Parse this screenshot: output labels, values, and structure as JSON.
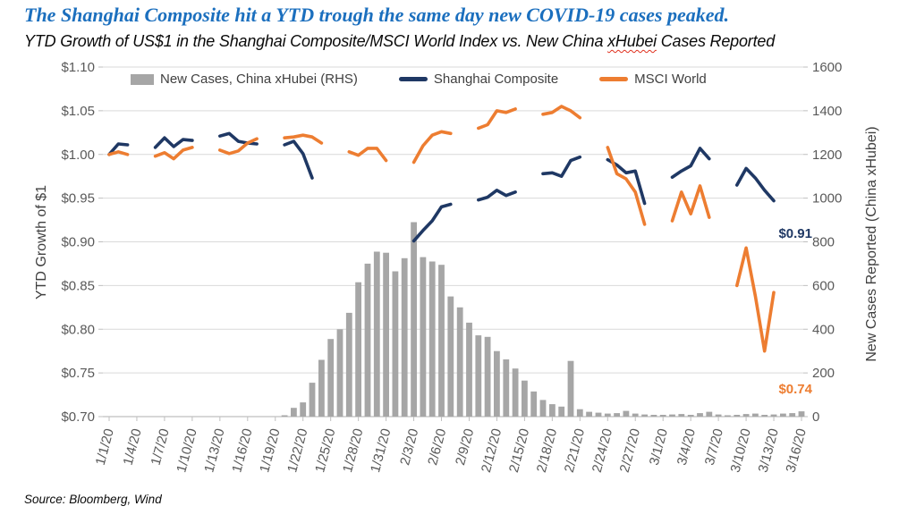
{
  "header": {
    "title": "The Shanghai Composite hit a YTD trough the same day new COVID-19 cases peaked.",
    "subtitle_pre": "YTD Growth of US$1 in the Shanghai Composite/MSCI World Index vs. New China ",
    "subtitle_highlight": "xHubei",
    "subtitle_post": " Cases Reported"
  },
  "legend": {
    "items": [
      {
        "label": "New Cases, China xHubei (RHS)",
        "type": "bar",
        "color": "#A6A6A6"
      },
      {
        "label": "Shanghai Composite",
        "type": "line",
        "color": "#1F3864"
      },
      {
        "label": "MSCI World",
        "type": "line",
        "color": "#ED7D31"
      }
    ]
  },
  "annotations": {
    "shanghai_end": {
      "text": "$0.91",
      "color": "#1F3864"
    },
    "msci_end": {
      "text": "$0.74",
      "color": "#ED7D31"
    }
  },
  "source": "Source: Bloomberg, Wind",
  "colors": {
    "title_blue": "#1B6FBE",
    "grid": "#D9D9D9",
    "axis_line": "#BFBFBF",
    "tick_text": "#595959"
  },
  "chart_data": {
    "type": "combo",
    "title": "YTD Growth of US$1 in the Shanghai Composite/MSCI World Index vs. New China xHubei Cases Reported",
    "grid": true,
    "legend_position": "top",
    "left_axis": {
      "label": "YTD Growth of $1",
      "min": 0.7,
      "max": 1.1,
      "ticks": [
        "$1.10",
        "$1.05",
        "$1.00",
        "$0.95",
        "$0.90",
        "$0.85",
        "$0.80",
        "$0.75",
        "$0.70"
      ]
    },
    "right_axis": {
      "label": "New Cases Reported (China xHubei)",
      "min": 0,
      "max": 1600,
      "ticks": [
        "1600",
        "1400",
        "1200",
        "1000",
        "800",
        "600",
        "400",
        "200",
        "0"
      ]
    },
    "x_tick_labels": [
      "1/1/20",
      "1/4/20",
      "1/7/20",
      "1/10/20",
      "1/13/20",
      "1/16/20",
      "1/19/20",
      "1/22/20",
      "1/25/20",
      "1/28/20",
      "1/31/20",
      "2/3/20",
      "2/6/20",
      "2/9/20",
      "2/12/20",
      "2/15/20",
      "2/18/20",
      "2/21/20",
      "2/24/20",
      "2/27/20",
      "3/1/20",
      "3/4/20",
      "3/7/20",
      "3/10/20",
      "3/13/20",
      "3/16/20"
    ],
    "dates": [
      "1/1/20",
      "1/2/20",
      "1/3/20",
      "1/4/20",
      "1/5/20",
      "1/6/20",
      "1/7/20",
      "1/8/20",
      "1/9/20",
      "1/10/20",
      "1/11/20",
      "1/12/20",
      "1/13/20",
      "1/14/20",
      "1/15/20",
      "1/16/20",
      "1/17/20",
      "1/18/20",
      "1/19/20",
      "1/20/20",
      "1/21/20",
      "1/22/20",
      "1/23/20",
      "1/24/20",
      "1/25/20",
      "1/26/20",
      "1/27/20",
      "1/28/20",
      "1/29/20",
      "1/30/20",
      "1/31/20",
      "2/1/20",
      "2/2/20",
      "2/3/20",
      "2/4/20",
      "2/5/20",
      "2/6/20",
      "2/7/20",
      "2/8/20",
      "2/9/20",
      "2/10/20",
      "2/11/20",
      "2/12/20",
      "2/13/20",
      "2/14/20",
      "2/15/20",
      "2/16/20",
      "2/17/20",
      "2/18/20",
      "2/19/20",
      "2/20/20",
      "2/21/20",
      "2/22/20",
      "2/23/20",
      "2/24/20",
      "2/25/20",
      "2/26/20",
      "2/27/20",
      "2/28/20",
      "2/29/20",
      "3/1/20",
      "3/2/20",
      "3/3/20",
      "3/4/20",
      "3/5/20",
      "3/6/20",
      "3/7/20",
      "3/8/20",
      "3/9/20",
      "3/10/20",
      "3/11/20",
      "3/12/20",
      "3/13/20",
      "3/14/20",
      "3/15/20",
      "3/16/20"
    ],
    "series": [
      {
        "name": "New Cases, China xHubei (RHS)",
        "type": "bar",
        "axis": "right",
        "color": "#A6A6A6",
        "values": [
          0,
          0,
          0,
          0,
          0,
          0,
          0,
          0,
          0,
          0,
          0,
          0,
          0,
          0,
          0,
          0,
          0,
          0,
          0,
          6,
          40,
          65,
          155,
          260,
          355,
          400,
          475,
          615,
          700,
          755,
          750,
          665,
          725,
          890,
          730,
          710,
          695,
          550,
          500,
          430,
          372,
          365,
          300,
          262,
          220,
          165,
          115,
          76,
          57,
          46,
          255,
          34,
          22,
          18,
          14,
          16,
          26,
          14,
          10,
          8,
          8,
          10,
          12,
          8,
          16,
          22,
          10,
          6,
          8,
          12,
          14,
          8,
          10,
          14,
          16,
          24
        ]
      },
      {
        "name": "Shanghai Composite",
        "type": "line",
        "axis": "left",
        "color": "#1F3864",
        "values": [
          1.0,
          1.012,
          1.011,
          null,
          null,
          1.008,
          1.019,
          1.009,
          1.017,
          1.016,
          null,
          null,
          1.021,
          1.024,
          1.015,
          1.013,
          1.012,
          null,
          null,
          1.011,
          1.015,
          1.001,
          0.973,
          null,
          null,
          null,
          null,
          null,
          null,
          null,
          null,
          null,
          null,
          0.901,
          0.913,
          0.924,
          0.94,
          0.943,
          null,
          null,
          0.948,
          0.951,
          0.959,
          0.953,
          0.957,
          null,
          null,
          0.978,
          0.979,
          0.975,
          0.993,
          0.997,
          null,
          null,
          0.994,
          0.988,
          0.979,
          0.981,
          0.944,
          null,
          null,
          0.974,
          0.981,
          0.987,
          1.007,
          0.995,
          null,
          null,
          0.965,
          0.984,
          0.973,
          0.959,
          0.947,
          null,
          null,
          0.915
        ]
      },
      {
        "name": "MSCI World",
        "type": "line",
        "axis": "left",
        "color": "#ED7D31",
        "values": [
          1.0,
          1.003,
          1.0,
          null,
          null,
          0.998,
          1.002,
          0.995,
          1.005,
          1.008,
          null,
          null,
          1.005,
          1.001,
          1.004,
          1.013,
          1.018,
          null,
          null,
          1.019,
          1.02,
          1.022,
          1.02,
          1.013,
          null,
          null,
          1.003,
          0.999,
          1.007,
          1.007,
          0.993,
          null,
          null,
          0.991,
          1.01,
          1.022,
          1.026,
          1.024,
          null,
          null,
          1.03,
          1.034,
          1.05,
          1.048,
          1.052,
          null,
          null,
          1.046,
          1.048,
          1.055,
          1.05,
          1.042,
          null,
          null,
          1.008,
          0.978,
          0.972,
          0.957,
          0.92,
          null,
          null,
          0.924,
          0.957,
          0.932,
          0.964,
          0.928,
          null,
          null,
          0.85,
          0.893,
          0.838,
          0.775,
          0.842,
          null,
          null,
          0.74
        ]
      }
    ]
  }
}
